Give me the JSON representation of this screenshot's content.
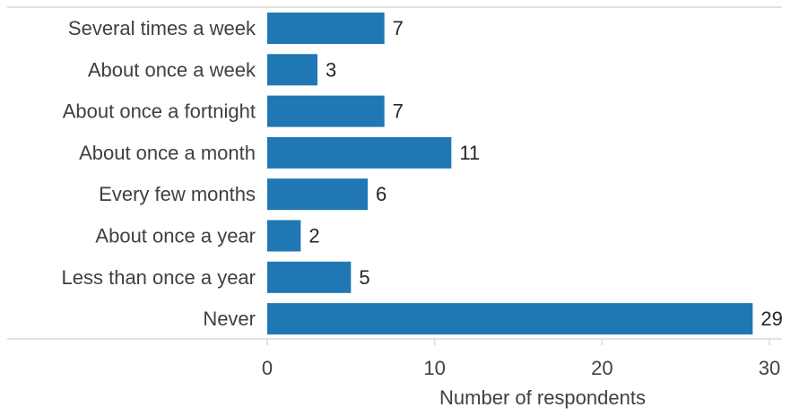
{
  "chart_data": {
    "type": "bar",
    "orientation": "horizontal",
    "categories": [
      "Several times a week",
      "About once a week",
      "About once a fortnight",
      "About once a month",
      "Every few months",
      "About once a year",
      "Less than once a year",
      "Never"
    ],
    "values": [
      7,
      3,
      7,
      11,
      6,
      2,
      5,
      29
    ],
    "xlabel": "Number of respondents",
    "ylabel": "",
    "xlim": [
      0,
      30
    ],
    "xticks": [
      0,
      10,
      20,
      30
    ],
    "xtick_labels": [
      "0",
      "10",
      "20",
      "30"
    ],
    "bar_color": "#1f77b4",
    "grid": false,
    "legend": "none"
  }
}
